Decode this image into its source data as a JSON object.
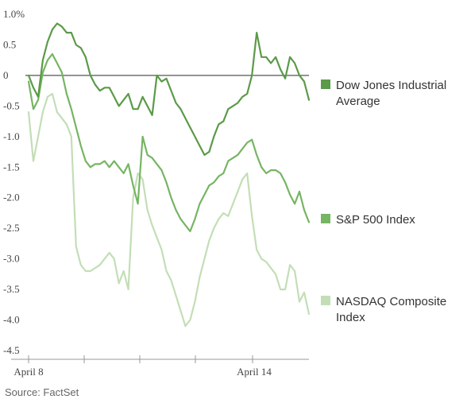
{
  "chart_data": {
    "type": "line",
    "ylim": [
      -4.5,
      1.0
    ],
    "y_ticks": [
      "1.0%",
      "0.5",
      "0",
      "-0.5",
      "-1.0",
      "-1.5",
      "-2.0",
      "-2.5",
      "-3.0",
      "-3.5",
      "-4.0",
      "-4.5"
    ],
    "x_tick_labels": [
      "April 8",
      "April 14"
    ],
    "zero_line": true,
    "legend_placement": "right",
    "series": [
      {
        "name": "Dow Jones Industrial Average",
        "name_lines": [
          "Dow Jones Industrial",
          "Average"
        ],
        "color": "#5b9a48",
        "values": [
          0.0,
          -0.2,
          -0.35,
          0.25,
          0.55,
          0.75,
          0.85,
          0.8,
          0.7,
          0.7,
          0.5,
          0.45,
          0.3,
          0.0,
          -0.15,
          -0.25,
          -0.2,
          -0.2,
          -0.35,
          -0.5,
          -0.4,
          -0.3,
          -0.55,
          -0.55,
          -0.35,
          -0.5,
          -0.65,
          0.0,
          -0.1,
          -0.05,
          -0.25,
          -0.45,
          -0.55,
          -0.7,
          -0.85,
          -1.0,
          -1.15,
          -1.3,
          -1.25,
          -1.0,
          -0.8,
          -0.75,
          -0.55,
          -0.5,
          -0.45,
          -0.35,
          -0.3,
          0.0,
          0.7,
          0.3,
          0.3,
          0.2,
          0.3,
          0.1,
          -0.05,
          0.3,
          0.2,
          0.0,
          -0.1,
          -0.4
        ]
      },
      {
        "name": "S&P 500 Index",
        "name_lines": [
          "S&P 500 Index"
        ],
        "color": "#76b563",
        "values": [
          -0.1,
          -0.55,
          -0.4,
          0.05,
          0.25,
          0.35,
          0.2,
          0.05,
          -0.3,
          -0.55,
          -0.85,
          -1.15,
          -1.4,
          -1.5,
          -1.45,
          -1.45,
          -1.4,
          -1.5,
          -1.4,
          -1.5,
          -1.6,
          -1.45,
          -1.8,
          -2.1,
          -1.0,
          -1.3,
          -1.35,
          -1.45,
          -1.55,
          -1.75,
          -2.0,
          -2.2,
          -2.35,
          -2.45,
          -2.55,
          -2.35,
          -2.1,
          -1.95,
          -1.8,
          -1.75,
          -1.65,
          -1.6,
          -1.4,
          -1.35,
          -1.3,
          -1.2,
          -1.1,
          -1.05,
          -1.3,
          -1.5,
          -1.6,
          -1.55,
          -1.55,
          -1.6,
          -1.75,
          -1.95,
          -2.1,
          -1.9,
          -2.2,
          -2.4
        ]
      },
      {
        "name": "NASDAQ Composite Index",
        "name_lines": [
          "NASDAQ Composite",
          "Index"
        ],
        "color": "#c3deb6",
        "values": [
          -0.6,
          -1.4,
          -1.0,
          -0.6,
          -0.35,
          -0.3,
          -0.6,
          -0.7,
          -0.8,
          -1.0,
          -2.8,
          -3.1,
          -3.2,
          -3.2,
          -3.15,
          -3.1,
          -3.0,
          -2.9,
          -3.0,
          -3.4,
          -3.2,
          -3.5,
          -2.0,
          -1.6,
          -1.7,
          -2.2,
          -2.45,
          -2.65,
          -2.85,
          -3.2,
          -3.35,
          -3.6,
          -3.85,
          -4.1,
          -4.0,
          -3.7,
          -3.3,
          -3.0,
          -2.7,
          -2.5,
          -2.35,
          -2.25,
          -2.3,
          -2.1,
          -1.9,
          -1.7,
          -1.6,
          -2.3,
          -2.85,
          -3.0,
          -3.05,
          -3.15,
          -3.25,
          -3.5,
          -3.5,
          -3.1,
          -3.2,
          -3.7,
          -3.55,
          -3.9
        ]
      }
    ]
  },
  "source": "Source: FactSet"
}
